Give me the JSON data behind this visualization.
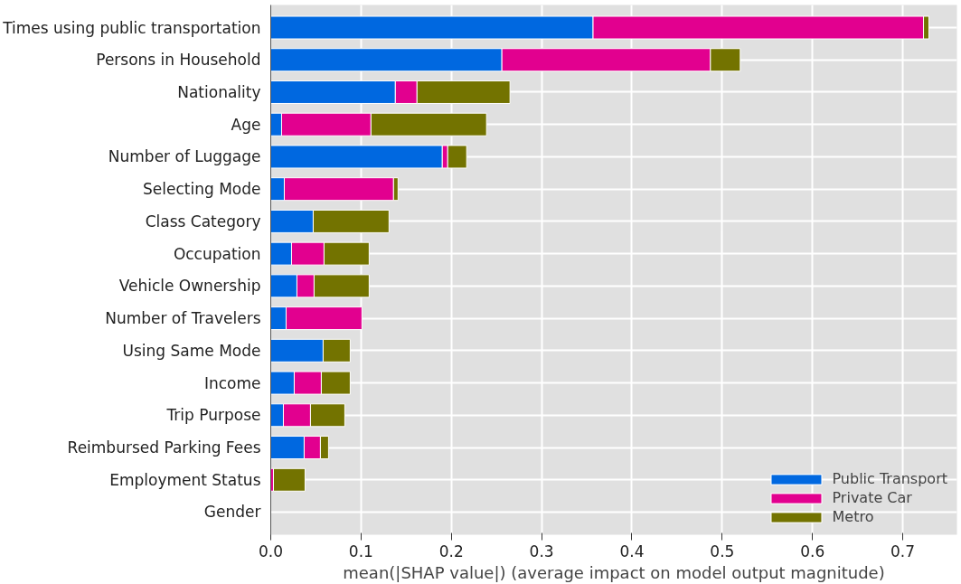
{
  "chart_data": {
    "type": "bar",
    "orientation": "horizontal",
    "stacked": true,
    "xlabel": "mean(|SHAP value|) (average impact on model output magnitude)",
    "categories": [
      "Times using public transportation",
      "Persons in Household",
      "Nationality",
      "Age",
      "Number of Luggage",
      "Selecting Mode",
      "Class Category",
      "Occupation",
      "Vehicle Ownership",
      "Number of Travelers",
      "Using Same Mode",
      "Income",
      "Trip Purpose",
      "Reimbursed Parking Fees",
      "Employment Status",
      "Gender"
    ],
    "series": [
      {
        "name": "Public Transport",
        "color": "#0068e0",
        "values": [
          0.357,
          0.256,
          0.138,
          0.012,
          0.19,
          0.015,
          0.047,
          0.023,
          0.029,
          0.017,
          0.058,
          0.026,
          0.014,
          0.037,
          null,
          null
        ]
      },
      {
        "name": "Private Car",
        "color": "#e2008f",
        "values": [
          0.366,
          0.231,
          0.024,
          0.099,
          0.006,
          0.121,
          null,
          0.036,
          0.019,
          0.084,
          null,
          0.03,
          0.03,
          0.018,
          0.003,
          null
        ]
      },
      {
        "name": "Metro",
        "color": "#737300",
        "values": [
          0.006,
          0.033,
          0.103,
          0.128,
          0.021,
          0.005,
          0.084,
          0.05,
          0.061,
          null,
          0.03,
          0.032,
          0.038,
          0.009,
          0.035,
          null
        ]
      }
    ],
    "xlim": [
      0,
      0.76
    ],
    "xticks": [
      {
        "value": 0,
        "label": "0.0"
      },
      0.1,
      0.2,
      0.3,
      0.4,
      0.5,
      0.6,
      0.7
    ],
    "grid": true,
    "legend": "bottom right"
  }
}
